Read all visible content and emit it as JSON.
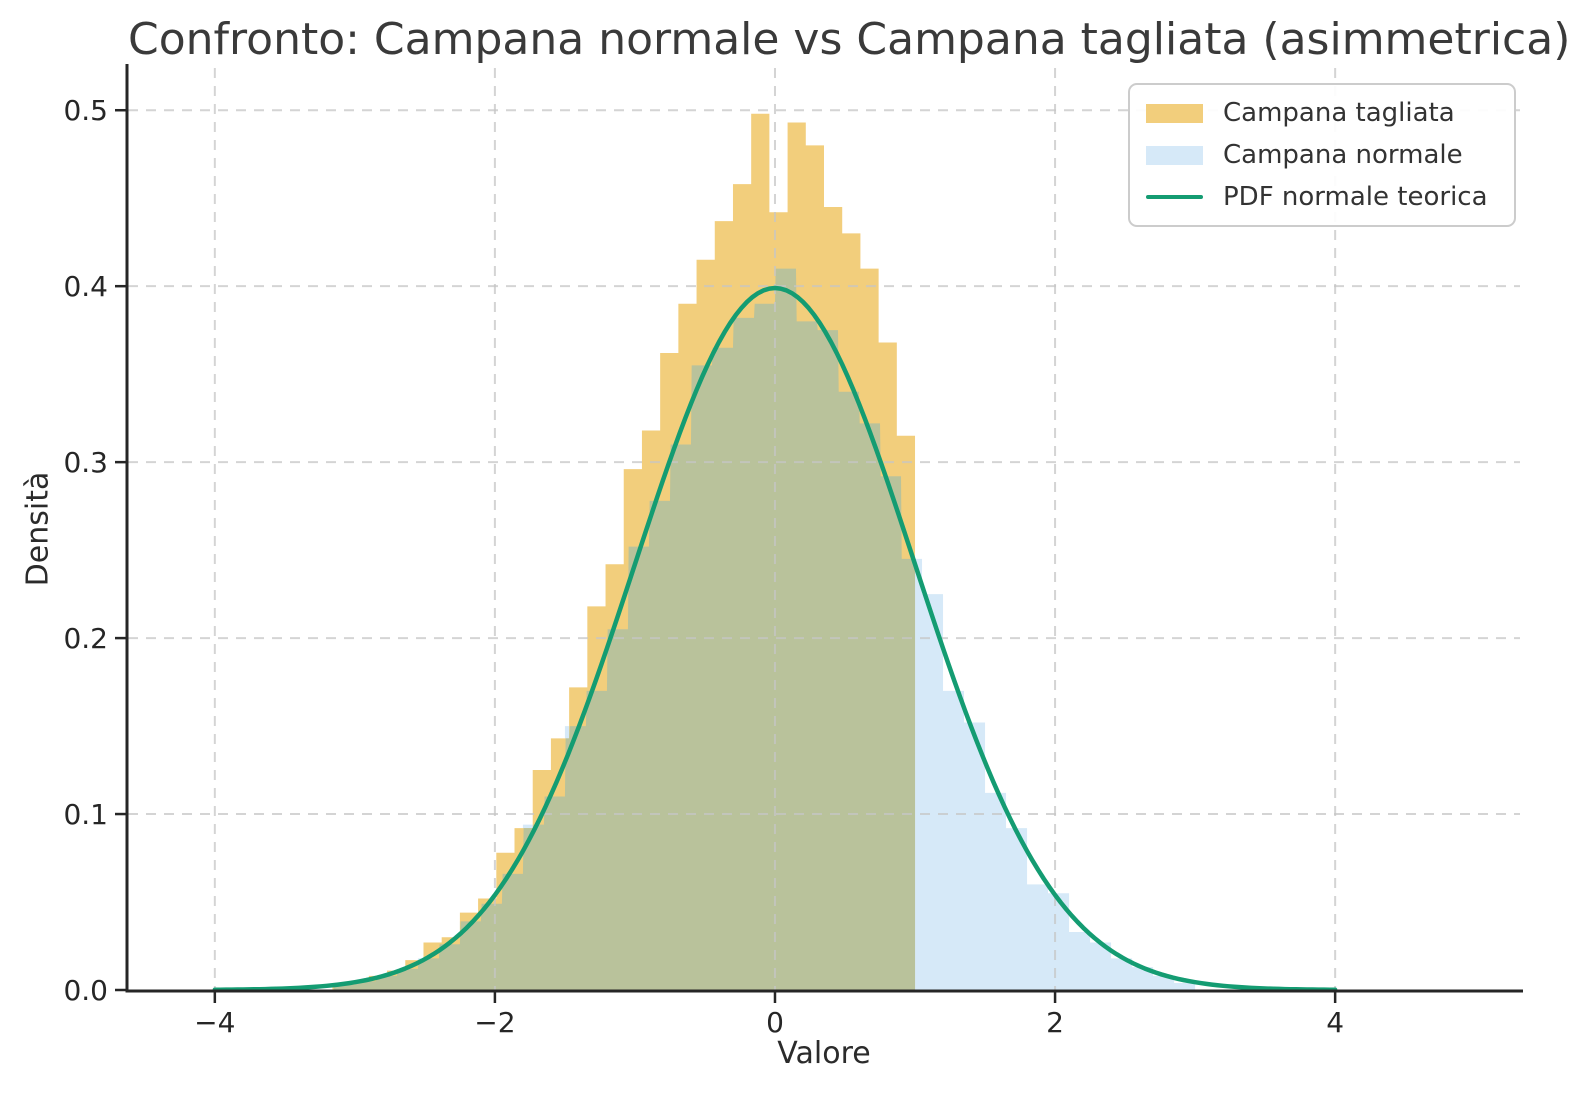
{
  "figure": {
    "background": "#ffffff"
  },
  "chart_data": {
    "type": "histogram",
    "title": "Confronto: Campana normale vs Campana tagliata (asimmetrica)",
    "xlabel": "Valore",
    "ylabel": "Densità",
    "xlim": [
      -4.62,
      5.32
    ],
    "ylim": [
      0,
      0.524
    ],
    "x_ticks": [
      -4,
      -2,
      0,
      2,
      4
    ],
    "x_tick_labels": [
      "−4",
      "−2",
      "0",
      "2",
      "4"
    ],
    "y_ticks": [
      0,
      0.1,
      0.2,
      0.3,
      0.4,
      0.5
    ],
    "y_tick_labels": [
      "0.0",
      "0.1",
      "0.2",
      "0.3",
      "0.4",
      "0.5"
    ],
    "grid": {
      "visible": true,
      "style": "dashed",
      "color": "#c6c6c6"
    },
    "legend": {
      "position": "upper right"
    },
    "series": [
      {
        "name": "Campana tagliata",
        "type": "histogram",
        "color": "#F2CE7C",
        "bin_start": -3.16,
        "bin_width": 0.13,
        "values": [
          0.004,
          0.005,
          0.008,
          0.011,
          0.017,
          0.027,
          0.03,
          0.044,
          0.052,
          0.078,
          0.092,
          0.125,
          0.143,
          0.172,
          0.218,
          0.242,
          0.296,
          0.318,
          0.362,
          0.39,
          0.415,
          0.437,
          0.458,
          0.498,
          0.442,
          0.493,
          0.48,
          0.445,
          0.43,
          0.41,
          0.368,
          0.315
        ]
      },
      {
        "name": "Campana normale",
        "type": "histogram",
        "color": "#D6E9F8",
        "bin_start": -3.15,
        "bin_width": 0.15,
        "values": [
          0.003,
          0.005,
          0.008,
          0.012,
          0.018,
          0.026,
          0.039,
          0.049,
          0.066,
          0.094,
          0.11,
          0.15,
          0.17,
          0.205,
          0.252,
          0.278,
          0.31,
          0.355,
          0.365,
          0.382,
          0.39,
          0.41,
          0.38,
          0.375,
          0.34,
          0.322,
          0.292,
          0.245,
          0.225,
          0.17,
          0.152,
          0.112,
          0.092,
          0.06,
          0.055,
          0.033,
          0.027,
          0.018,
          0.013,
          0.008,
          0.004
        ]
      },
      {
        "name": "PDF normale teorica",
        "type": "line",
        "color": "#149C72",
        "mean": 0,
        "sd": 1,
        "x_range": [
          -4,
          4
        ]
      }
    ],
    "overlap_color": "#B9C29B",
    "axis_color": "#262626",
    "tick_label_color": "#262626",
    "text_color": "#333333"
  }
}
